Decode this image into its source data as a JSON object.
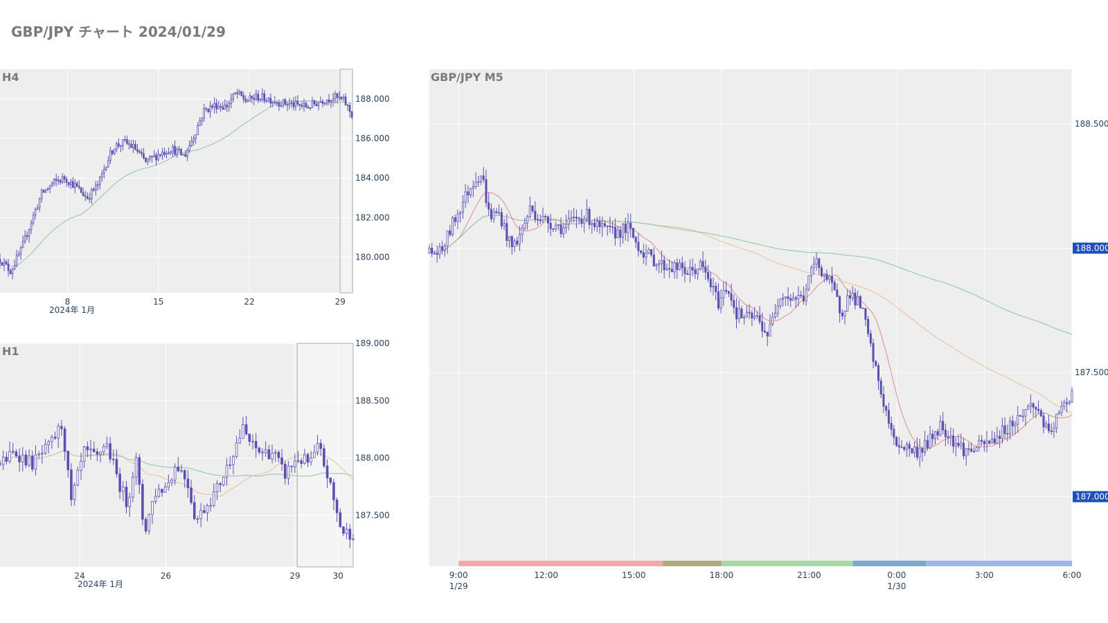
{
  "page": {
    "title": "GBP/JPY チャート 2024/01/29"
  },
  "colors": {
    "candle": "#5a4fb0",
    "ma_short": "#e08080",
    "ma_mid": "#e8b98a",
    "ma_long": "#7fc0a0",
    "panel_bg": "#eeeeee",
    "grid": "#ffffff",
    "price_tag": "#1f4fb8"
  },
  "chart_data": [
    {
      "name": "H4",
      "type": "candlestick",
      "title": "H4",
      "x_ticks": [
        "8",
        "15",
        "22",
        "29"
      ],
      "x_sub_label": "2024年 1月",
      "x_tick_days": [
        8,
        15,
        22,
        29
      ],
      "x_range": [
        2.8,
        30.0
      ],
      "y_ticks": [
        "180.000",
        "182.000",
        "184.000",
        "186.000",
        "188.000"
      ],
      "y_tick_values": [
        180,
        182,
        184,
        186,
        188
      ],
      "y_range": [
        178.2,
        189.5
      ],
      "highlight_days": [
        29.0,
        29.95
      ],
      "anchors": [
        [
          2.8,
          179.9
        ],
        [
          3.6,
          179.3
        ],
        [
          4.4,
          180.3
        ],
        [
          5.2,
          181.8
        ],
        [
          6.0,
          183.2
        ],
        [
          7.0,
          183.8
        ],
        [
          7.8,
          184.0
        ],
        [
          8.6,
          183.6
        ],
        [
          9.5,
          183.0
        ],
        [
          10.4,
          183.7
        ],
        [
          11.0,
          184.8
        ],
        [
          11.6,
          185.6
        ],
        [
          12.4,
          185.8
        ],
        [
          13.2,
          185.5
        ],
        [
          14.0,
          184.8
        ],
        [
          15.0,
          185.2
        ],
        [
          16.0,
          185.5
        ],
        [
          17.0,
          185.1
        ],
        [
          17.7,
          186.1
        ],
        [
          18.5,
          187.4
        ],
        [
          19.4,
          187.7
        ],
        [
          20.2,
          187.6
        ],
        [
          21.0,
          188.3
        ],
        [
          21.8,
          187.9
        ],
        [
          22.6,
          188.1
        ],
        [
          23.5,
          188.0
        ],
        [
          24.5,
          187.8
        ],
        [
          25.5,
          187.7
        ],
        [
          26.5,
          187.6
        ],
        [
          27.5,
          187.9
        ],
        [
          28.5,
          188.1
        ],
        [
          29.3,
          187.9
        ],
        [
          29.9,
          187.2
        ]
      ]
    },
    {
      "name": "H1",
      "type": "candlestick",
      "title": "H1",
      "x_ticks": [
        "24",
        "26",
        "29",
        "30"
      ],
      "x_sub_label": "2024年 1月",
      "x_tick_days": [
        24,
        26,
        29,
        30
      ],
      "x_range": [
        22.15,
        30.35
      ],
      "y_ticks": [
        "187.500",
        "188.000",
        "188.500",
        "189.000"
      ],
      "y_tick_values": [
        187.5,
        188.0,
        188.5,
        189.0
      ],
      "y_range": [
        187.05,
        189.0
      ],
      "highlight_days": [
        29.05,
        30.35
      ],
      "anchors": [
        [
          22.15,
          187.95
        ],
        [
          22.5,
          188.05
        ],
        [
          22.9,
          187.95
        ],
        [
          23.3,
          188.1
        ],
        [
          23.6,
          188.3
        ],
        [
          23.8,
          187.6
        ],
        [
          24.1,
          188.05
        ],
        [
          24.4,
          188.0
        ],
        [
          24.6,
          188.15
        ],
        [
          24.9,
          187.8
        ],
        [
          25.1,
          187.6
        ],
        [
          25.3,
          188.0
        ],
        [
          25.5,
          187.35
        ],
        [
          25.75,
          187.7
        ],
        [
          26.0,
          187.75
        ],
        [
          26.25,
          187.95
        ],
        [
          26.5,
          187.8
        ],
        [
          26.7,
          187.45
        ],
        [
          26.95,
          187.6
        ],
        [
          27.15,
          187.7
        ],
        [
          27.4,
          187.9
        ],
        [
          27.6,
          188.1
        ],
        [
          27.8,
          188.25
        ],
        [
          28.0,
          188.1
        ],
        [
          28.2,
          188.05
        ],
        [
          28.5,
          188.05
        ],
        [
          28.75,
          187.85
        ],
        [
          29.05,
          188.0
        ],
        [
          29.35,
          187.95
        ],
        [
          29.55,
          188.1
        ],
        [
          29.75,
          187.85
        ],
        [
          29.95,
          187.55
        ],
        [
          30.1,
          187.35
        ],
        [
          30.35,
          187.35
        ]
      ]
    },
    {
      "name": "M5",
      "type": "candlestick",
      "title": "GBP/JPY M5",
      "x_ticks": [
        "9:00",
        "12:00",
        "15:00",
        "18:00",
        "21:00",
        "0:00",
        "3:00",
        "6:00"
      ],
      "x_sub_labels": [
        "1/29",
        "",
        "",
        "",
        "",
        "1/30",
        "",
        ""
      ],
      "x_tick_hours": [
        9,
        12,
        15,
        18,
        21,
        24,
        27,
        30
      ],
      "x_range": [
        8.0,
        30.0
      ],
      "y_ticks": [
        "187.000",
        "187.500",
        "188.000",
        "188.500"
      ],
      "y_tick_values": [
        187.0,
        187.5,
        188.0,
        188.5
      ],
      "y_range": [
        186.72,
        188.72
      ],
      "price_tags": [
        "188.000",
        "187.000"
      ],
      "price_tag_values": [
        188.0,
        187.0
      ],
      "session_bar": [
        {
          "from": 9.0,
          "to": 16.0,
          "color": "#f0a8a8"
        },
        {
          "from": 16.0,
          "to": 18.0,
          "color": "#b0a880"
        },
        {
          "from": 18.0,
          "to": 22.5,
          "color": "#a8d8a8"
        },
        {
          "from": 22.5,
          "to": 25.0,
          "color": "#7aa6d0"
        },
        {
          "from": 25.0,
          "to": 30.0,
          "color": "#a0b4ec"
        }
      ],
      "anchors": [
        [
          8.0,
          187.98
        ],
        [
          8.4,
          187.98
        ],
        [
          8.8,
          188.1
        ],
        [
          9.2,
          188.2
        ],
        [
          9.55,
          188.28
        ],
        [
          9.8,
          188.3
        ],
        [
          10.05,
          188.13
        ],
        [
          10.4,
          188.14
        ],
        [
          10.8,
          188.0
        ],
        [
          11.1,
          188.05
        ],
        [
          11.45,
          188.16
        ],
        [
          11.8,
          188.12
        ],
        [
          12.2,
          188.1
        ],
        [
          12.6,
          188.08
        ],
        [
          13.0,
          188.12
        ],
        [
          13.4,
          188.13
        ],
        [
          13.8,
          188.08
        ],
        [
          14.3,
          188.06
        ],
        [
          14.8,
          188.08
        ],
        [
          15.2,
          188.0
        ],
        [
          15.6,
          187.96
        ],
        [
          16.0,
          187.93
        ],
        [
          16.5,
          187.92
        ],
        [
          16.9,
          187.9
        ],
        [
          17.3,
          187.93
        ],
        [
          17.6,
          187.86
        ],
        [
          17.9,
          187.78
        ],
        [
          18.2,
          187.85
        ],
        [
          18.5,
          187.74
        ],
        [
          18.8,
          187.72
        ],
        [
          19.2,
          187.72
        ],
        [
          19.6,
          187.65
        ],
        [
          20.0,
          187.82
        ],
        [
          20.4,
          187.8
        ],
        [
          20.8,
          187.8
        ],
        [
          21.2,
          187.95
        ],
        [
          21.5,
          187.9
        ],
        [
          21.8,
          187.84
        ],
        [
          22.1,
          187.74
        ],
        [
          22.4,
          187.82
        ],
        [
          22.8,
          187.76
        ],
        [
          23.2,
          187.55
        ],
        [
          23.5,
          187.4
        ],
        [
          23.9,
          187.22
        ],
        [
          24.3,
          187.2
        ],
        [
          24.7,
          187.18
        ],
        [
          25.1,
          187.22
        ],
        [
          25.5,
          187.29
        ],
        [
          26.0,
          187.22
        ],
        [
          26.4,
          187.18
        ],
        [
          26.8,
          187.2
        ],
        [
          27.2,
          187.22
        ],
        [
          27.7,
          187.27
        ],
        [
          28.2,
          187.32
        ],
        [
          28.6,
          187.37
        ],
        [
          28.9,
          187.34
        ],
        [
          29.2,
          187.24
        ],
        [
          29.5,
          187.32
        ],
        [
          30.0,
          187.42
        ]
      ]
    }
  ]
}
